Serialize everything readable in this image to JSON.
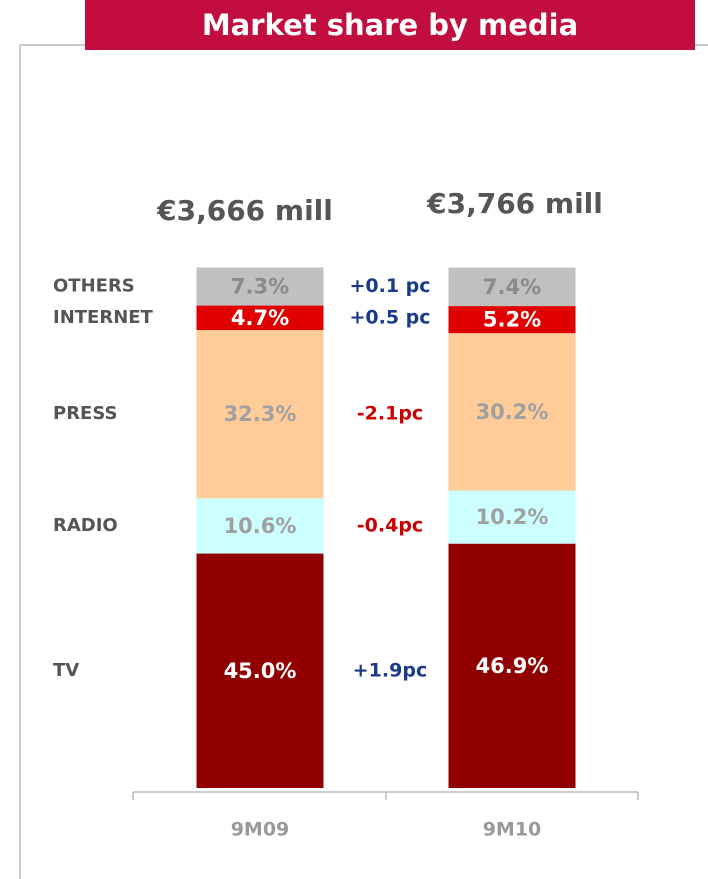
{
  "chart_data": {
    "type": "stacked_bar",
    "title": "Market share by media",
    "categories": [
      "9M09",
      "9M10"
    ],
    "totals_labels": [
      "€3,666 mill",
      "€3,766 mill"
    ],
    "ylim": [
      0,
      100
    ],
    "series": [
      {
        "name": "TV",
        "color": "#900000",
        "label_color": "#ffffff",
        "values": [
          45.0,
          46.9
        ],
        "value_labels": [
          "45.0%",
          "46.9%"
        ],
        "change": "+1.9pc"
      },
      {
        "name": "RADIO",
        "color": "#ccffff",
        "label_color": "#a0a0a0",
        "values": [
          10.6,
          10.2
        ],
        "value_labels": [
          "10.6%",
          "10.2%"
        ],
        "change": "-0.4pc"
      },
      {
        "name": "PRESS",
        "color": "#ffcc99",
        "label_color": "#a0a0a0",
        "values": [
          32.3,
          30.2
        ],
        "value_labels": [
          "32.3%",
          "30.2%"
        ],
        "change": "-2.1pc"
      },
      {
        "name": "INTERNET",
        "color": "#e00000",
        "label_color": "#ffffff",
        "values": [
          4.7,
          5.2
        ],
        "value_labels": [
          "4.7%",
          "5.2%"
        ],
        "change": "+0.5 pc"
      },
      {
        "name": "OTHERS",
        "color": "#c0c0c0",
        "label_color": "#8a8a8a",
        "values": [
          7.3,
          7.4
        ],
        "value_labels": [
          "7.3%",
          "7.4%"
        ],
        "change": "+0.1 pc"
      }
    ]
  }
}
